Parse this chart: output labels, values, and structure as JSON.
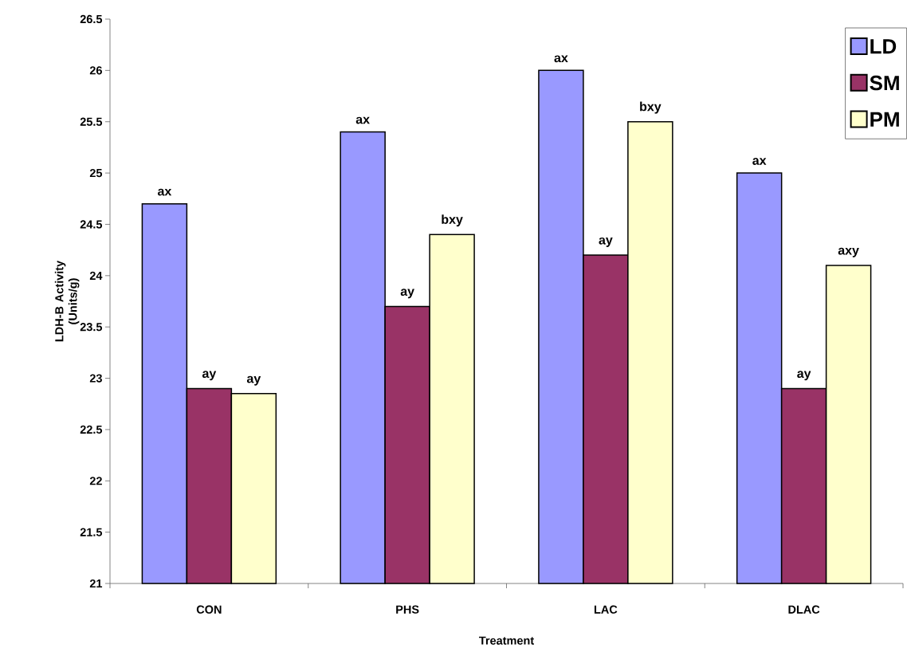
{
  "chart_data": {
    "type": "bar",
    "xlabel": "Treatment",
    "ylabel": "LDH-B Activity (Units/g)",
    "categories": [
      "CON",
      "PHS",
      "LAC",
      "DLAC"
    ],
    "series": [
      {
        "name": "LD",
        "color": "#9999ff",
        "values": [
          24.7,
          25.4,
          26.0,
          25.0
        ],
        "value_labels": [
          "ax",
          "ax",
          "ax",
          "ax"
        ]
      },
      {
        "name": "SM",
        "color": "#993366",
        "values": [
          22.9,
          23.7,
          24.2,
          22.9
        ],
        "value_labels": [
          "ay",
          "ay",
          "ay",
          "ay"
        ]
      },
      {
        "name": "PM",
        "color": "#ffffcc",
        "values": [
          22.85,
          24.4,
          25.5,
          24.1
        ],
        "value_labels": [
          "ay",
          "bxy",
          "bxy",
          "axy"
        ]
      }
    ],
    "ylim": [
      21,
      26.5
    ],
    "yticks": [
      21,
      21.5,
      22,
      22.5,
      23,
      23.5,
      24,
      24.5,
      25,
      25.5,
      26,
      26.5
    ],
    "grid": false,
    "legend": "top right"
  }
}
